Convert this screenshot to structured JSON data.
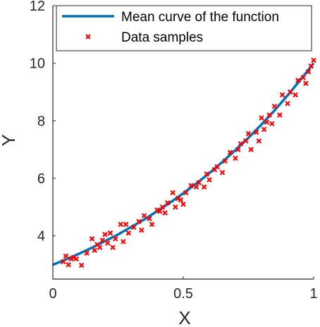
{
  "chart_data": {
    "type": "line",
    "title": "",
    "xlabel": "X",
    "ylabel": "Y",
    "xlim": [
      0,
      1
    ],
    "ylim": [
      2.5,
      12
    ],
    "xticks": [
      "0",
      "0.5",
      "1"
    ],
    "yticks": [
      "4",
      "6",
      "8",
      "10",
      "12"
    ],
    "xtick_values": [
      0,
      0.5,
      1
    ],
    "ytick_values": [
      4,
      6,
      8,
      10,
      12
    ],
    "grid": false,
    "legend_position": "top",
    "colors": {
      "curve": "#0072bd",
      "samples": "#ff0000",
      "axis": "#262626"
    },
    "series": [
      {
        "name": "Mean curve of the function",
        "kind": "line",
        "formula": "3 * exp(ln(10/3) * x)",
        "x": [
          0,
          0.05,
          0.1,
          0.15,
          0.2,
          0.25,
          0.3,
          0.35,
          0.4,
          0.45,
          0.5,
          0.55,
          0.6,
          0.65,
          0.7,
          0.75,
          0.8,
          0.85,
          0.9,
          0.95,
          1.0
        ],
        "y": [
          3.0,
          3.18,
          3.38,
          3.59,
          3.82,
          4.05,
          4.31,
          4.57,
          4.86,
          5.16,
          5.48,
          5.82,
          6.18,
          6.57,
          6.98,
          7.41,
          7.87,
          8.36,
          8.88,
          9.43,
          10.0
        ]
      },
      {
        "name": "Data samples",
        "kind": "scatter",
        "x": [
          0.04,
          0.05,
          0.06,
          0.07,
          0.08,
          0.09,
          0.11,
          0.13,
          0.15,
          0.16,
          0.17,
          0.18,
          0.19,
          0.2,
          0.21,
          0.22,
          0.23,
          0.24,
          0.26,
          0.27,
          0.28,
          0.29,
          0.31,
          0.33,
          0.34,
          0.35,
          0.37,
          0.38,
          0.4,
          0.41,
          0.42,
          0.43,
          0.44,
          0.46,
          0.47,
          0.48,
          0.49,
          0.5,
          0.51,
          0.53,
          0.55,
          0.56,
          0.58,
          0.59,
          0.6,
          0.62,
          0.63,
          0.65,
          0.66,
          0.68,
          0.7,
          0.71,
          0.72,
          0.74,
          0.75,
          0.76,
          0.78,
          0.79,
          0.8,
          0.81,
          0.82,
          0.83,
          0.84,
          0.85,
          0.87,
          0.88,
          0.9,
          0.91,
          0.93,
          0.94,
          0.96,
          0.97,
          0.98,
          0.99,
          1.0
        ],
        "y": [
          3.1,
          3.3,
          3.0,
          3.2,
          3.25,
          3.2,
          2.98,
          3.4,
          3.9,
          3.5,
          3.7,
          3.6,
          3.85,
          4.05,
          3.75,
          4.1,
          3.6,
          3.9,
          4.4,
          3.8,
          4.4,
          4.1,
          4.3,
          4.5,
          4.2,
          4.7,
          4.6,
          4.4,
          4.9,
          4.85,
          5.0,
          4.8,
          5.15,
          5.5,
          5.0,
          5.3,
          5.25,
          5.1,
          5.5,
          5.75,
          5.7,
          5.85,
          5.7,
          6.15,
          5.95,
          6.3,
          6.4,
          6.2,
          6.6,
          6.9,
          6.7,
          7.0,
          7.2,
          7.3,
          7.55,
          7.0,
          7.6,
          7.3,
          8.1,
          7.7,
          7.95,
          8.2,
          7.9,
          8.5,
          8.2,
          8.9,
          8.6,
          9.0,
          8.9,
          9.4,
          9.5,
          9.3,
          9.7,
          9.9,
          10.1
        ]
      }
    ]
  }
}
